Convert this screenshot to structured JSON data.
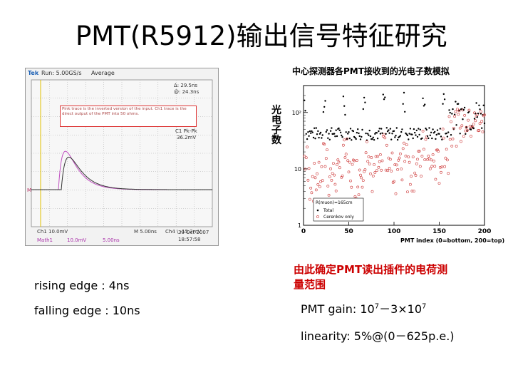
{
  "title": "PMT(R5912)输出信号特征研究",
  "scope": {
    "brand": "Tek",
    "run_status": "Run: 5.00GS/s",
    "mode": "Average",
    "cursor_delta": "Δ: 29.5ns",
    "cursor_at": "@: 24.3ns",
    "note": "Pink trace is the inverted version of the input. Ch1 trace is the direct output of the PMT into 50 ohms.",
    "measure_label": "C1 Pk-Pk",
    "measure_value": "36.2mV",
    "ch1_scale": "Ch1 10.0mV",
    "timebase": "M 5.00ns",
    "trigger": "Ch4 \\ -15.2mV",
    "date": "30 Oct 2007",
    "time": "18:57:58",
    "math_label": "Math1",
    "math_scale": "10.0mV",
    "math_time": "5.00ns",
    "marker_m": "M"
  },
  "plot": {
    "title": "中心探测器各PMT接收到的光电子数模拟",
    "ylabel": "光电子数",
    "xlabel": "PMT index (0=bottom, 200=top)",
    "xticks": [
      "0",
      "50",
      "100",
      "150",
      "200"
    ],
    "legend_header": "R(muon)=165cm",
    "legend_total": "Total",
    "legend_cerenkov": "Cerenkov only"
  },
  "chart_data": {
    "type": "scatter",
    "xlabel": "PMT index (0=bottom, 200=top)",
    "ylabel": "光电子数",
    "xlim": [
      0,
      200
    ],
    "ylim": [
      1,
      300
    ],
    "yscale": "log",
    "series": [
      {
        "name": "Total",
        "marker": "dot",
        "color": "#000000"
      },
      {
        "name": "Cerenkov only",
        "marker": "circle",
        "color": "#cc3333"
      }
    ]
  },
  "rising_edge": "rising edge : 4ns",
  "falling_edge": "falling edge : 10ns",
  "conclusion_line1": "由此确定PMT读出插件的电荷测",
  "conclusion_line2": "量范围",
  "gain_prefix": "PMT gain: 10",
  "gain_exp1": "7",
  "gain_mid": "－3×10",
  "gain_exp2": "7",
  "linearity": "linearity: 5%@(0－625p.e.)"
}
